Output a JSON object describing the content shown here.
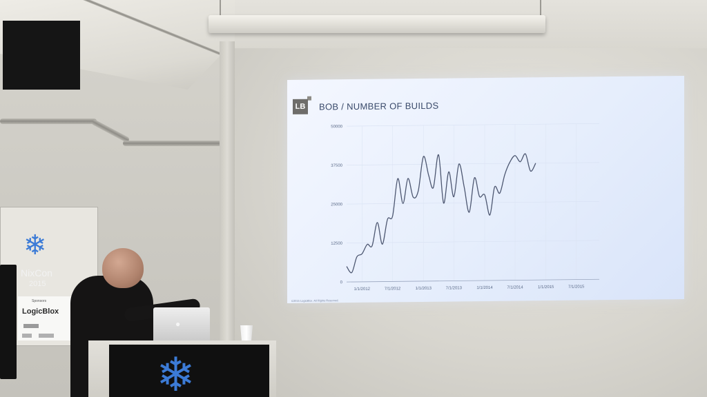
{
  "slide": {
    "logo_text": "LB",
    "title": "BOB / NUMBER OF BUILDS",
    "copyright": "©2015 LogicBlox. All Rights Reserved."
  },
  "chart_data": {
    "type": "line",
    "title": "BOB / NUMBER OF BUILDS",
    "xlabel": "",
    "ylabel": "",
    "y_ticks": [
      "0",
      "12500",
      "25000",
      "37500",
      "50000"
    ],
    "ylim": [
      0,
      50000
    ],
    "x_ticks": [
      "1/1/2012",
      "7/1/2012",
      "1/1/2013",
      "7/1/2013",
      "1/1/2014",
      "7/1/2014",
      "1/1/2015",
      "7/1/2015"
    ],
    "grid": true,
    "series": [
      {
        "values": [
          {
            "x": "2011-10-01",
            "y": 5000
          },
          {
            "x": "2011-11-01",
            "y": 3000
          },
          {
            "x": "2011-12-01",
            "y": 8000
          },
          {
            "x": "2012-01-01",
            "y": 9000
          },
          {
            "x": "2012-02-01",
            "y": 12000
          },
          {
            "x": "2012-03-01",
            "y": 11500
          },
          {
            "x": "2012-04-01",
            "y": 19000
          },
          {
            "x": "2012-05-01",
            "y": 12000
          },
          {
            "x": "2012-06-01",
            "y": 20000
          },
          {
            "x": "2012-07-01",
            "y": 21000
          },
          {
            "x": "2012-08-01",
            "y": 33000
          },
          {
            "x": "2012-09-01",
            "y": 25000
          },
          {
            "x": "2012-10-01",
            "y": 33000
          },
          {
            "x": "2012-11-01",
            "y": 27000
          },
          {
            "x": "2012-12-01",
            "y": 29000
          },
          {
            "x": "2013-01-01",
            "y": 40000
          },
          {
            "x": "2013-02-01",
            "y": 34000
          },
          {
            "x": "2013-03-01",
            "y": 30000
          },
          {
            "x": "2013-04-01",
            "y": 40500
          },
          {
            "x": "2013-05-01",
            "y": 25000
          },
          {
            "x": "2013-06-01",
            "y": 35000
          },
          {
            "x": "2013-07-01",
            "y": 27000
          },
          {
            "x": "2013-08-01",
            "y": 37500
          },
          {
            "x": "2013-09-01",
            "y": 30000
          },
          {
            "x": "2013-10-01",
            "y": 22000
          },
          {
            "x": "2013-11-01",
            "y": 33000
          },
          {
            "x": "2013-12-01",
            "y": 27000
          },
          {
            "x": "2014-01-01",
            "y": 27500
          },
          {
            "x": "2014-02-01",
            "y": 21000
          },
          {
            "x": "2014-03-01",
            "y": 30000
          },
          {
            "x": "2014-04-01",
            "y": 28000
          },
          {
            "x": "2014-05-01",
            "y": 34000
          },
          {
            "x": "2014-06-01",
            "y": 38000
          },
          {
            "x": "2014-07-01",
            "y": 40000
          },
          {
            "x": "2014-08-01",
            "y": 38000
          },
          {
            "x": "2014-09-01",
            "y": 40500
          },
          {
            "x": "2014-10-01",
            "y": 35000
          },
          {
            "x": "2014-11-01",
            "y": 37500
          }
        ]
      }
    ]
  },
  "banner": {
    "title": "NixCon",
    "year": "2015",
    "sponsors_heading": "Sponsors",
    "sponsor_main": "LogicBlox"
  }
}
